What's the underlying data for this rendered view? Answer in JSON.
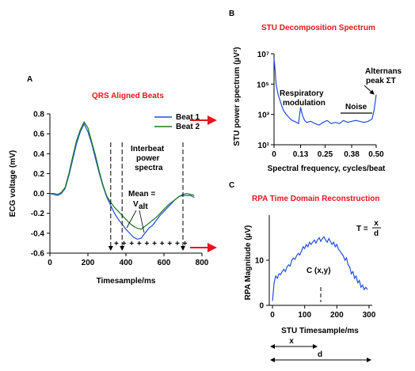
{
  "panels": {
    "a": "A",
    "b": "B",
    "c": "C"
  },
  "colors": {
    "beat1": "#1f4fd8",
    "beat2": "#1a7a1a",
    "title": "#e8141e",
    "arrow": "#e8141e"
  },
  "annotations": {
    "interbeat_1": "Interbeat",
    "interbeat_2": "power",
    "interbeat_3": "spectra",
    "mean_1": "Mean =",
    "mean_v": "V",
    "mean_sub": "alt",
    "plus_row": "+ + + + + + + + + +",
    "respiratory_1": "Respiratory",
    "respiratory_2": "modulation",
    "noise": "Noise",
    "alternans_1": "Alternans",
    "alternans_2": "peak ΣT",
    "c_point": "C (x,y)",
    "t_formula_lhs": "T =",
    "t_formula_num": "x",
    "t_formula_den": "d",
    "x_span": "x",
    "d_span": "d"
  },
  "chart_data": [
    {
      "type": "line",
      "title": "QRS Aligned Beats",
      "xlabel": "Timesample/ms",
      "ylabel": "ECG voltage (mV)",
      "xlim": [
        0,
        800
      ],
      "ylim": [
        -0.6,
        0.8
      ],
      "xticks": [
        "0",
        "200",
        "400",
        "600",
        "800"
      ],
      "yticks": [
        "0.8",
        "0.6",
        "0.4",
        "0.2",
        "0.0",
        "-0.2",
        "-0.4",
        "-0.6"
      ],
      "legend": [
        "Beat 1",
        "Beat 2"
      ],
      "series": [
        {
          "name": "Beat 1",
          "x": [
            0,
            20,
            40,
            60,
            80,
            100,
            120,
            140,
            160,
            180,
            200,
            220,
            240,
            260,
            280,
            300,
            320,
            340,
            360,
            380,
            400,
            420,
            440,
            460,
            480,
            500,
            520,
            540,
            560,
            580,
            600,
            620,
            640,
            660,
            680,
            700,
            720,
            740,
            760
          ],
          "y": [
            0.0,
            -0.01,
            -0.02,
            0.0,
            0.05,
            0.18,
            0.34,
            0.5,
            0.62,
            0.7,
            0.62,
            0.5,
            0.35,
            0.2,
            0.07,
            -0.04,
            -0.12,
            -0.2,
            -0.26,
            -0.31,
            -0.36,
            -0.4,
            -0.44,
            -0.46,
            -0.45,
            -0.4,
            -0.35,
            -0.32,
            -0.27,
            -0.22,
            -0.18,
            -0.14,
            -0.1,
            -0.06,
            -0.03,
            -0.02,
            -0.02,
            -0.02,
            -0.04
          ]
        },
        {
          "name": "Beat 2",
          "x": [
            0,
            20,
            40,
            60,
            80,
            100,
            120,
            140,
            160,
            180,
            200,
            220,
            240,
            260,
            280,
            300,
            320,
            340,
            360,
            380,
            400,
            420,
            440,
            460,
            480,
            500,
            520,
            540,
            560,
            580,
            600,
            620,
            640,
            660,
            680,
            700,
            720,
            740,
            760
          ],
          "y": [
            0.0,
            0.0,
            -0.01,
            0.01,
            0.06,
            0.2,
            0.37,
            0.53,
            0.64,
            0.72,
            0.66,
            0.52,
            0.38,
            0.22,
            0.08,
            -0.03,
            -0.09,
            -0.14,
            -0.18,
            -0.22,
            -0.26,
            -0.3,
            -0.33,
            -0.35,
            -0.36,
            -0.33,
            -0.3,
            -0.27,
            -0.24,
            -0.2,
            -0.16,
            -0.12,
            -0.09,
            -0.06,
            -0.03,
            -0.01,
            0.0,
            -0.01,
            -0.02
          ]
        }
      ],
      "vlines_x": [
        320,
        380,
        700
      ]
    },
    {
      "type": "line",
      "title": "STU Decomposition Spectrum",
      "xlabel": "Spectral frequency, cycles/beat",
      "ylabel": "STU power spectrum (µV²)",
      "xlim": [
        0,
        0.5
      ],
      "yscale": "log",
      "ylim": [
        10,
        10000000
      ],
      "xticks": [
        "0",
        "0.13",
        "0.25",
        "0.38",
        "0.50"
      ],
      "yticks": [
        "10⁷",
        "10⁵",
        "10³",
        "10¹"
      ],
      "series": [
        {
          "name": "",
          "x": [
            0,
            0.005,
            0.01,
            0.02,
            0.03,
            0.04,
            0.05,
            0.06,
            0.07,
            0.08,
            0.09,
            0.1,
            0.11,
            0.12,
            0.13,
            0.14,
            0.15,
            0.16,
            0.18,
            0.2,
            0.22,
            0.24,
            0.26,
            0.28,
            0.3,
            0.32,
            0.34,
            0.36,
            0.38,
            0.4,
            0.42,
            0.44,
            0.46,
            0.48,
            0.49,
            0.5
          ],
          "y": [
            5000000,
            1000000,
            100000,
            20000,
            8000,
            3000,
            1500,
            1000,
            700,
            500,
            400,
            350,
            300,
            250,
            3000,
            800,
            400,
            300,
            350,
            250,
            200,
            300,
            400,
            250,
            300,
            250,
            400,
            300,
            350,
            400,
            350,
            300,
            350,
            500,
            2000,
            20000
          ]
        }
      ]
    },
    {
      "type": "line",
      "title": "RPA Time Domain Reconstruction",
      "xlabel": "STU Timesample/ms",
      "ylabel": "RPA Magnitude (µV)",
      "xlim": [
        -10,
        310
      ],
      "ylim": [
        0,
        20
      ],
      "xticks": [
        "0",
        "100",
        "200",
        "300"
      ],
      "yticks": [
        "10",
        "0"
      ],
      "series": [
        {
          "name": "",
          "x": [
            0,
            5,
            10,
            15,
            20,
            25,
            30,
            35,
            40,
            45,
            50,
            55,
            60,
            65,
            70,
            75,
            80,
            85,
            90,
            95,
            100,
            105,
            110,
            115,
            120,
            125,
            130,
            135,
            140,
            145,
            150,
            155,
            160,
            165,
            170,
            175,
            180,
            185,
            190,
            195,
            200,
            205,
            210,
            215,
            220,
            225,
            230,
            235,
            240,
            245,
            250,
            255,
            260,
            265,
            270,
            275,
            280,
            285,
            290,
            295
          ],
          "y": [
            1,
            5,
            6.5,
            6,
            7,
            6.8,
            7.5,
            8,
            7.5,
            8.5,
            9,
            8.7,
            10,
            10.5,
            10.2,
            11,
            11.5,
            11.2,
            12,
            13,
            12.6,
            13.5,
            13,
            14,
            13.5,
            14,
            14.5,
            13.8,
            14.5,
            15,
            14.2,
            14.8,
            15.2,
            14.5,
            14,
            14.8,
            14.2,
            13.5,
            14,
            13,
            13.5,
            12.5,
            12,
            11.5,
            11,
            10,
            10.5,
            9,
            8.5,
            7,
            7.5,
            6,
            6.5,
            5,
            5.5,
            4,
            4.5,
            3.5,
            4,
            3.5
          ]
        }
      ],
      "marker_x": 150
    }
  ]
}
